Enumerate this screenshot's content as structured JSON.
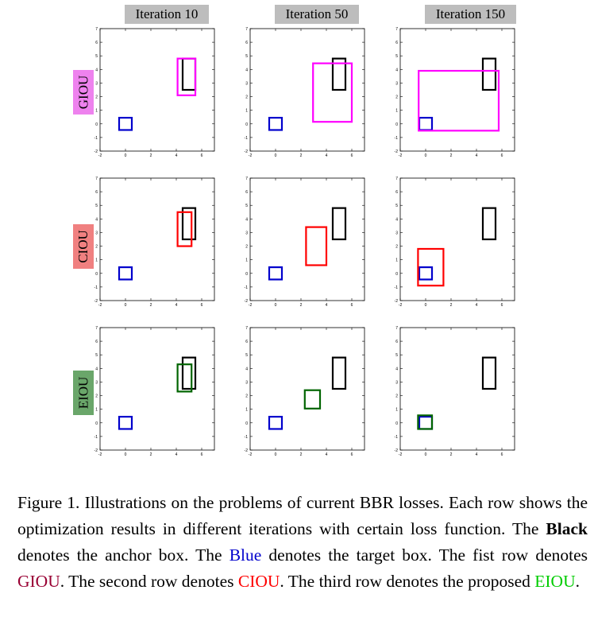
{
  "columns": [
    "Iteration 10",
    "Iteration 50",
    "Iteration 150"
  ],
  "rows": [
    {
      "label": "GIOU",
      "bg": "#ee82ee",
      "box_color": "#ff00ff"
    },
    {
      "label": "CIOU",
      "bg": "#f08080",
      "box_color": "#ff0000"
    },
    {
      "label": "EIOU",
      "bg": "#6aa66a",
      "box_color": "#006400"
    }
  ],
  "axis": {
    "xlim": [
      -2,
      7
    ],
    "ylim": [
      -2,
      7
    ],
    "x_ticks": [
      "-2",
      "0",
      "2",
      "4",
      "6"
    ],
    "y_ticks": [
      "-2",
      "-1",
      "0",
      "1",
      "2",
      "3",
      "4",
      "5",
      "6",
      "7"
    ]
  },
  "colors": {
    "anchor": "#000000",
    "target": "#0000cc"
  },
  "chart_data": {
    "type": "scatter",
    "description": "3x3 grid of bounding box plots",
    "anchor_box": {
      "x": 4.5,
      "y": 2.5,
      "w": 1.0,
      "h": 2.3
    },
    "target_box": {
      "x": -0.5,
      "y": -0.45,
      "w": 1.0,
      "h": 0.9
    },
    "predicted_boxes": [
      [
        {
          "x": 4.1,
          "y": 2.1,
          "w": 1.4,
          "h": 2.7
        },
        {
          "x": 2.95,
          "y": 0.15,
          "w": 3.05,
          "h": 4.3
        },
        {
          "x": -0.55,
          "y": -0.5,
          "w": 6.3,
          "h": 4.4
        }
      ],
      [
        {
          "x": 4.1,
          "y": 2.0,
          "w": 1.1,
          "h": 2.5
        },
        {
          "x": 2.4,
          "y": 0.6,
          "w": 1.6,
          "h": 2.8
        },
        {
          "x": -0.6,
          "y": -0.9,
          "w": 2.0,
          "h": 2.7
        }
      ],
      [
        {
          "x": 4.1,
          "y": 2.3,
          "w": 1.1,
          "h": 2.0
        },
        {
          "x": 2.3,
          "y": 1.05,
          "w": 1.2,
          "h": 1.35
        },
        {
          "x": -0.6,
          "y": -0.45,
          "w": 1.1,
          "h": 1.0
        }
      ]
    ]
  },
  "caption": {
    "part1": "Figure 1. Illustrations on the problems of current BBR losses. Each row shows the optimization results in different iterations with certain loss function. The ",
    "bold": "Black",
    "part2": " denotes the anchor box. The ",
    "blue": "Blue",
    "part3": " denotes the target box.  The fist row denotes ",
    "giou": "GIOU",
    "part4": ". The second row denotes ",
    "ciou": "CIOU",
    "part5": ". The third row denotes the proposed ",
    "eiou": "EIOU",
    "part6": ".",
    "giou_color": "#990033",
    "ciou_color": "#ff0000",
    "eiou_color": "#00cc00",
    "blue_color": "#0000cc"
  }
}
